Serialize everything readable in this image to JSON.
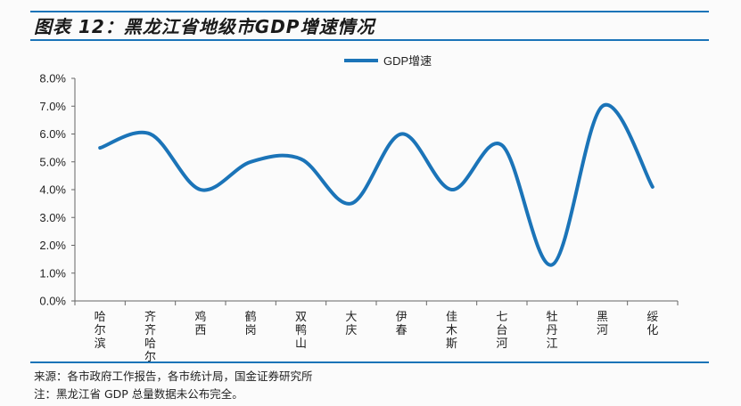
{
  "title": "图表 12：黑龙江省地级市GDP增速情况",
  "source": "来源：各市政府工作报告，各市统计局，国金证券研究所",
  "note": "注：黑龙江省 GDP 总量数据未公布完全。",
  "colors": {
    "accent": "#1b74b8",
    "line": "#1b74b8"
  },
  "chart_data": {
    "type": "line",
    "title": "",
    "xlabel": "",
    "ylabel": "",
    "categories": [
      "哈尔滨",
      "齐齐哈尔",
      "鸡西",
      "鹤岗",
      "双鸭山",
      "大庆",
      "伊春",
      "佳木斯",
      "七台河",
      "牡丹江",
      "黑河",
      "绥化"
    ],
    "series": [
      {
        "name": "GDP增速",
        "values": [
          5.5,
          6.0,
          4.0,
          5.0,
          5.1,
          3.5,
          6.0,
          4.0,
          5.6,
          1.3,
          7.0,
          4.1
        ]
      }
    ],
    "ylim": [
      0,
      8
    ],
    "yticks": [
      "0.0%",
      "1.0%",
      "2.0%",
      "3.0%",
      "4.0%",
      "5.0%",
      "6.0%",
      "7.0%",
      "8.0%"
    ],
    "grid": false,
    "legend": "top-center",
    "smooth": true
  }
}
